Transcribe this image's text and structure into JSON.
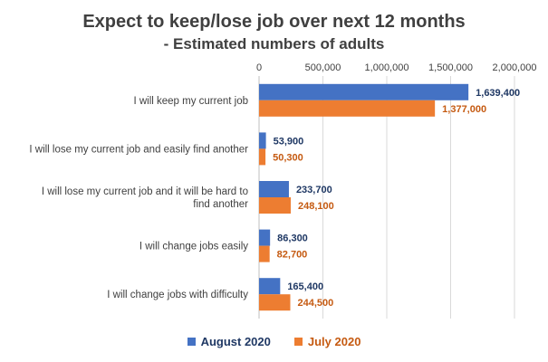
{
  "chart_data": {
    "type": "bar",
    "orientation": "horizontal",
    "title": "Expect to keep/lose job over next 12 months",
    "subtitle": "- Estimated numbers of adults",
    "categories": [
      [
        "I will keep my current job"
      ],
      [
        "I will lose my current job and easily find another"
      ],
      [
        "I will lose my current job and it will be hard to",
        "find another"
      ],
      [
        "I will change jobs easily"
      ],
      [
        "I will change jobs with difficulty"
      ]
    ],
    "series": [
      {
        "name": "August 2020",
        "color": "#4472C4",
        "label_color": "#1F3864",
        "values": [
          1639400,
          53900,
          233700,
          86300,
          165400
        ],
        "labels": [
          "1,639,400",
          "53,900",
          "233,700",
          "86,300",
          "165,400"
        ]
      },
      {
        "name": "July 2020",
        "color": "#ED7D31",
        "label_color": "#C55A11",
        "values": [
          1377000,
          50300,
          248100,
          82700,
          244500
        ],
        "labels": [
          "1,377,000",
          "50,300",
          "248,100",
          "82,700",
          "244,500"
        ]
      }
    ],
    "xlim": [
      0,
      2000000
    ],
    "x_ticks": [
      0,
      500000,
      1000000,
      1500000,
      2000000
    ],
    "x_tick_labels": [
      "0",
      "500,000",
      "1,000,000",
      "1,500,000",
      "2,000,000"
    ],
    "axis_position": "top",
    "grid": true,
    "legend_position": "bottom"
  }
}
